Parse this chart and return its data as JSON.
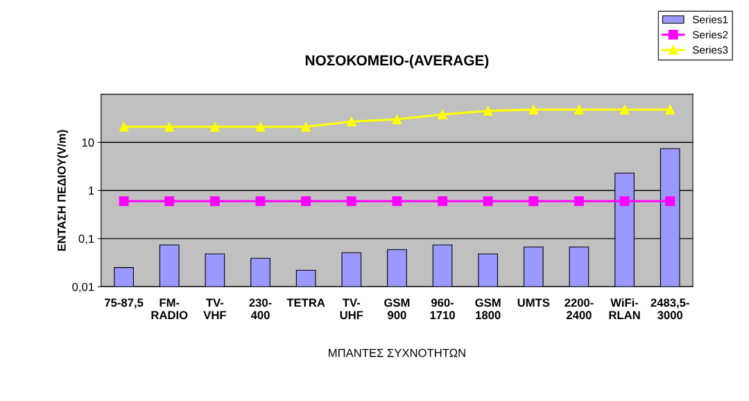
{
  "chart_data": {
    "type": "bar",
    "title": "ΝΟΣΟΚΟΜΕΙΟ-(AVERAGE)",
    "xlabel": "ΜΠΑΝΤΕΣ ΣΥΧΝΟΤΗΤΩΝ",
    "ylabel": "ΕΝΤΑΣΗ ΠΕΔΙΟΥ(V/m)",
    "categories": [
      "75-87,5",
      "FM-\nRADIO",
      "TV-\nVHF",
      "230-\n400",
      "TETRA",
      "TV-\nUHF",
      "GSM\n900",
      "960-\n1710",
      "GSM\n1800",
      "UMTS",
      "2200-\n2400",
      "WiFi-\nRLAN",
      "2483,5-\n3000"
    ],
    "series": [
      {
        "name": "Series1",
        "color": "#9999ff",
        "values": [
          0.025,
          0.074,
          0.048,
          0.039,
          0.022,
          0.051,
          0.059,
          0.074,
          0.048,
          0.067,
          0.067,
          2.3,
          7.4
        ]
      },
      {
        "name": "Series2",
        "type": "line",
        "color": "#ff00ff",
        "marker": "square",
        "values": [
          0.6,
          0.6,
          0.6,
          0.6,
          0.6,
          0.6,
          0.6,
          0.6,
          0.6,
          0.6,
          0.6,
          0.6,
          0.6
        ]
      },
      {
        "name": "Series3",
        "type": "line",
        "color": "#ffff00",
        "marker": "triangle",
        "values": [
          21,
          21,
          21,
          21,
          21,
          27,
          30,
          38,
          45,
          48,
          48,
          48,
          48
        ]
      }
    ],
    "log": true,
    "ylim": [
      0.01,
      100
    ],
    "yticks": [
      {
        "value": 0.01,
        "label": "0,01"
      },
      {
        "value": 0.1,
        "label": "0,1"
      },
      1,
      10
    ],
    "grid": "y",
    "legend": "top right"
  }
}
